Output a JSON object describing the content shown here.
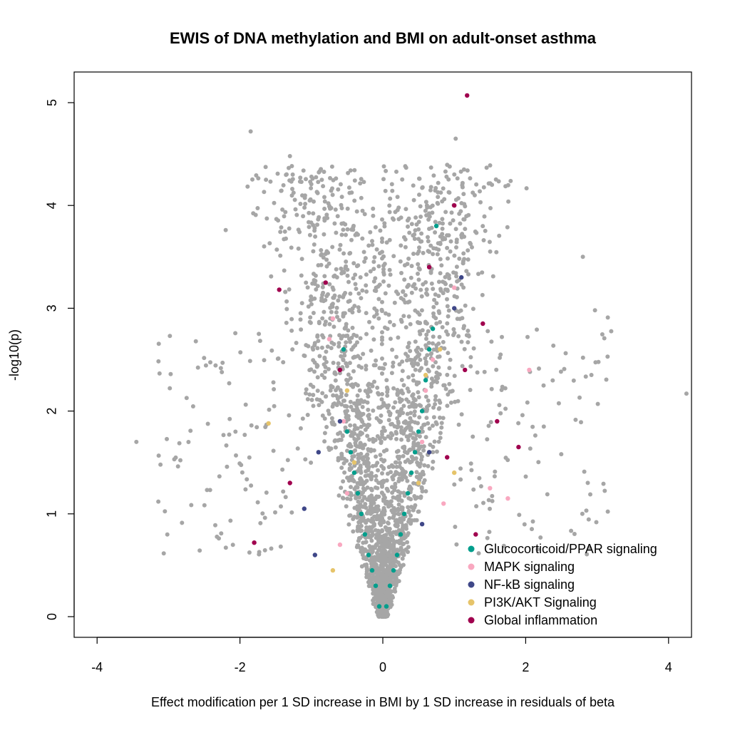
{
  "chart_data": {
    "type": "scatter",
    "title": "EWIS of DNA methylation and BMI on adult-onset asthma",
    "xlabel": "Effect modification per 1 SD increase in BMI by 1 SD increase in residuals of beta",
    "ylabel": "-log10(p)",
    "xlim": [
      -4.3,
      4.3
    ],
    "ylim": [
      -0.2,
      5.2
    ],
    "x_ticks": [
      -4,
      -2,
      0,
      2,
      4
    ],
    "x_tick_labels": [
      "-4",
      "-2",
      "0",
      "2",
      "4"
    ],
    "y_ticks": [
      0,
      1,
      2,
      3,
      4,
      5
    ],
    "y_tick_labels": [
      "0",
      "1",
      "2",
      "3",
      "4",
      "5"
    ],
    "grid": false,
    "legend_position": "bottom-right",
    "background_color": "#A6A6A6",
    "series": [
      {
        "name": "Glucocorticoid/PPAR signaling",
        "color": "#009E8C",
        "points": [
          [
            0.05,
            0.1
          ],
          [
            0.1,
            0.3
          ],
          [
            0.15,
            0.45
          ],
          [
            0.2,
            0.6
          ],
          [
            0.25,
            0.8
          ],
          [
            0.3,
            1.0
          ],
          [
            0.35,
            1.2
          ],
          [
            0.4,
            1.4
          ],
          [
            0.45,
            1.6
          ],
          [
            0.5,
            1.8
          ],
          [
            0.55,
            2.0
          ],
          [
            0.6,
            2.3
          ],
          [
            0.65,
            2.6
          ],
          [
            0.7,
            2.8
          ],
          [
            0.75,
            3.8
          ],
          [
            -0.05,
            0.1
          ],
          [
            -0.1,
            0.3
          ],
          [
            -0.15,
            0.45
          ],
          [
            -0.2,
            0.6
          ],
          [
            -0.25,
            0.8
          ],
          [
            -0.3,
            1.0
          ],
          [
            -0.35,
            1.2
          ],
          [
            -0.4,
            1.4
          ],
          [
            -0.45,
            1.6
          ],
          [
            -0.5,
            1.8
          ],
          [
            -0.55,
            2.6
          ]
        ]
      },
      {
        "name": "MAPK signaling",
        "color": "#F9A8C0",
        "points": [
          [
            2.05,
            2.4
          ],
          [
            1.5,
            1.25
          ],
          [
            1.75,
            1.15
          ],
          [
            -0.7,
            2.9
          ],
          [
            -0.75,
            2.7
          ],
          [
            -0.55,
            1.9
          ],
          [
            0.6,
            2.2
          ],
          [
            0.7,
            2.5
          ],
          [
            0.55,
            1.7
          ],
          [
            -0.5,
            1.2
          ],
          [
            1.0,
            3.2
          ],
          [
            0.85,
            1.1
          ],
          [
            -0.6,
            0.7
          ]
        ]
      },
      {
        "name": "NF-kB signaling",
        "color": "#3F4788",
        "points": [
          [
            -0.95,
            0.6
          ],
          [
            -0.9,
            1.6
          ],
          [
            -1.1,
            1.05
          ],
          [
            1.1,
            3.3
          ],
          [
            0.55,
            0.9
          ],
          [
            -0.6,
            1.9
          ],
          [
            0.65,
            1.6
          ],
          [
            1.0,
            3.0
          ]
        ]
      },
      {
        "name": "PI3K/AKT Signaling",
        "color": "#E6C46A",
        "points": [
          [
            -1.6,
            1.88
          ],
          [
            -0.4,
            1.5
          ],
          [
            0.5,
            1.3
          ],
          [
            0.6,
            2.35
          ],
          [
            -0.5,
            2.2
          ],
          [
            1.0,
            1.4
          ],
          [
            -0.7,
            0.45
          ],
          [
            0.8,
            2.6
          ]
        ]
      },
      {
        "name": "Global inflammation",
        "color": "#A0004E",
        "points": [
          [
            1.18,
            5.07
          ],
          [
            -1.8,
            0.72
          ],
          [
            -1.45,
            3.18
          ],
          [
            1.9,
            1.65
          ],
          [
            1.6,
            1.9
          ],
          [
            1.4,
            2.85
          ],
          [
            1.0,
            4.0
          ],
          [
            -0.8,
            3.25
          ],
          [
            0.65,
            3.4
          ],
          [
            1.15,
            2.4
          ],
          [
            -1.3,
            1.3
          ],
          [
            1.3,
            0.8
          ],
          [
            0.9,
            1.55
          ],
          [
            -0.6,
            2.4
          ]
        ]
      }
    ]
  }
}
